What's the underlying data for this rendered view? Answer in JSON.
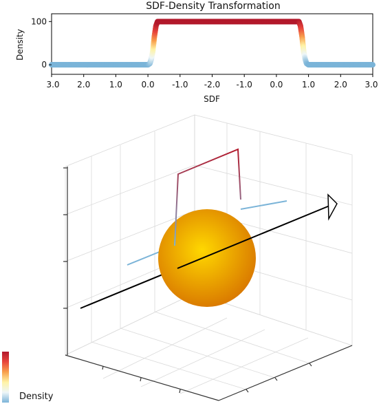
{
  "chart_data": [
    {
      "type": "scatter",
      "title": "SDF-Density Transformation",
      "xlabel": "SDF",
      "ylabel": "Density",
      "x_tick_labels": [
        "3.0",
        "2.0",
        "1.0",
        "0.0",
        "-1.0",
        "-2.0",
        "-1.0",
        "0.0",
        "1.0",
        "2.0",
        "3.0"
      ],
      "y_ticks": [
        0,
        100
      ],
      "ylim": [
        -22,
        118
      ],
      "grid": false,
      "colormap": [
        "#b2182b",
        "#e8453c",
        "#f8a04c",
        "#fff3a6",
        "#eef6f8",
        "#7bb4d8"
      ],
      "x": [
        0,
        1,
        2,
        3,
        3.06,
        3.1,
        3.15,
        3.2,
        3.25,
        3.3,
        4,
        5,
        6,
        7,
        7.7,
        7.75,
        7.8,
        7.85,
        7.9,
        7.94,
        8,
        9,
        10
      ],
      "y": [
        0,
        0,
        0,
        0,
        3,
        12,
        30,
        65,
        90,
        100,
        100,
        100,
        100,
        100,
        100,
        90,
        65,
        30,
        12,
        3,
        0,
        0,
        0
      ]
    },
    {
      "type": "3d",
      "ray": {
        "color": "#000000"
      },
      "density_line": {
        "low_color": "#7bb4d8",
        "high_color": "#b2182b"
      },
      "sphere": {
        "center_color": "#ffd800",
        "edge_color": "#d97800"
      },
      "colorbar_label": "Density"
    }
  ]
}
